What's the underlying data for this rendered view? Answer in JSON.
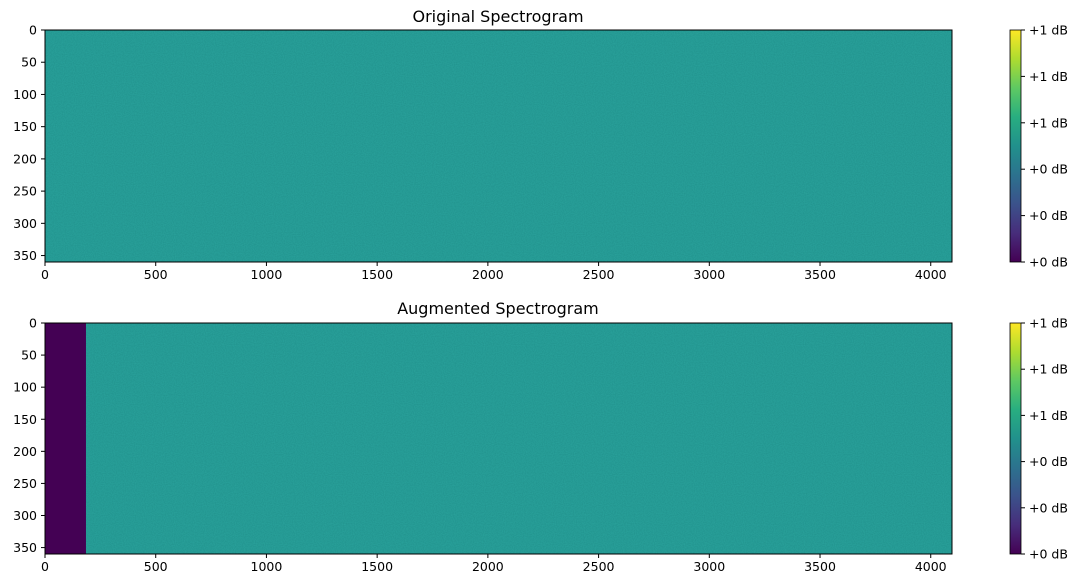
{
  "chart_data": [
    {
      "type": "heatmap",
      "title": "Original Spectrogram",
      "xlabel": "",
      "ylabel": "",
      "xlim": [
        0,
        4096
      ],
      "ylim": [
        360,
        0
      ],
      "xticks": [
        0,
        500,
        1000,
        1500,
        2000,
        2500,
        3000,
        3500,
        4000
      ],
      "xtick_labels": [
        "0",
        "500",
        "1000",
        "1500",
        "2000",
        "2500",
        "3000",
        "3500",
        "4000"
      ],
      "yticks": [
        0,
        50,
        100,
        150,
        200,
        250,
        300,
        350
      ],
      "ytick_labels": [
        "0",
        "50",
        "100",
        "150",
        "200",
        "250",
        "300",
        "350"
      ],
      "colormap": "viridis",
      "base_level": 0.5,
      "noise": "uniform fine-grained noise around mid-scale",
      "masked_region": null,
      "colorbar": {
        "tick_labels": [
          "+1 dB",
          "+1 dB",
          "+1 dB",
          "+0 dB",
          "+0 dB",
          "+0 dB"
        ],
        "tick_levels": [
          1.0,
          0.8,
          0.6,
          0.4,
          0.2,
          0.0
        ]
      },
      "grid": false,
      "legend": "none"
    },
    {
      "type": "heatmap",
      "title": "Augmented Spectrogram",
      "xlabel": "",
      "ylabel": "",
      "xlim": [
        0,
        4096
      ],
      "ylim": [
        360,
        0
      ],
      "xticks": [
        0,
        500,
        1000,
        1500,
        2000,
        2500,
        3000,
        3500,
        4000
      ],
      "xtick_labels": [
        "0",
        "500",
        "1000",
        "1500",
        "2000",
        "2500",
        "3000",
        "3500",
        "4000"
      ],
      "yticks": [
        0,
        50,
        100,
        150,
        200,
        250,
        300,
        350
      ],
      "ytick_labels": [
        "0",
        "50",
        "100",
        "150",
        "200",
        "250",
        "300",
        "350"
      ],
      "colormap": "viridis",
      "base_level": 0.5,
      "noise": "uniform fine-grained noise around mid-scale",
      "masked_region": {
        "x_start": 0,
        "x_end": 185,
        "level": 0.0
      },
      "colorbar": {
        "tick_labels": [
          "+1 dB",
          "+1 dB",
          "+1 dB",
          "+0 dB",
          "+0 dB",
          "+0 dB"
        ],
        "tick_levels": [
          1.0,
          0.8,
          0.6,
          0.4,
          0.2,
          0.0
        ]
      },
      "grid": false,
      "legend": "none"
    }
  ]
}
